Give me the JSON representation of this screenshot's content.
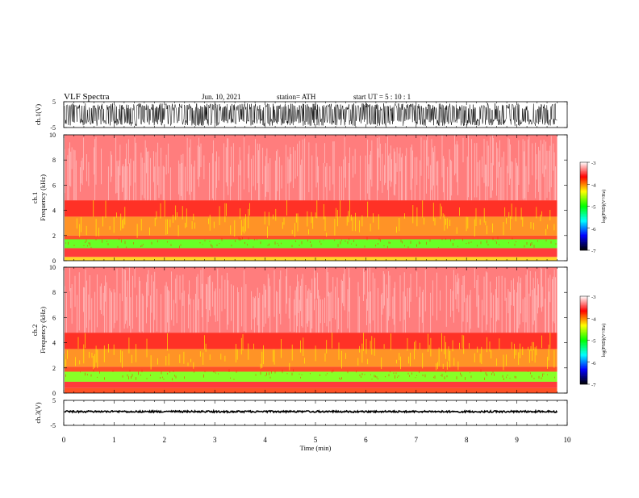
{
  "header": {
    "title": "VLF  Spectra",
    "date": "Jun. 10, 2021",
    "station": "station= ATH",
    "start": "start  UT  =    5  : 10 : 1"
  },
  "chart_data": [
    {
      "type": "line",
      "panel": "ch1-waveform",
      "ylabel": "ch.1(V)",
      "yticks": [
        "5",
        "-5"
      ],
      "ylim": [
        -5,
        5
      ],
      "xlim": [
        0,
        10
      ],
      "amplitude_note": "noise roughly between -3 and 3 V, recorded 0 to 9.8 min",
      "color": "#000000"
    },
    {
      "type": "heatmap",
      "panel": "ch1-spectrogram",
      "ylabel_line1": "ch.1",
      "ylabel_line2": "Frequency  (kHz)",
      "yticks": [
        "10",
        "8",
        "6",
        "4",
        "2",
        "0"
      ],
      "ylim": [
        0,
        10
      ],
      "xlim": [
        0,
        9.8
      ],
      "bands_khz": [
        {
          "from": 0.0,
          "to": 0.3,
          "level": -4.2
        },
        {
          "from": 0.3,
          "to": 1.0,
          "level": -3.6
        },
        {
          "from": 1.0,
          "to": 1.7,
          "level": -4.8
        },
        {
          "from": 1.7,
          "to": 2.0,
          "level": -3.8
        },
        {
          "from": 2.0,
          "to": 3.5,
          "level": -4.0
        },
        {
          "from": 3.5,
          "to": 4.8,
          "level": -3.7
        },
        {
          "from": 4.8,
          "to": 10.0,
          "level": -3.4
        }
      ]
    },
    {
      "type": "heatmap",
      "panel": "ch2-spectrogram",
      "ylabel_line1": "ch.2",
      "ylabel_line2": "Frequency  (kHz)",
      "yticks": [
        "10",
        "8",
        "6",
        "4",
        "2",
        "0"
      ],
      "ylim": [
        0,
        10
      ],
      "xlim": [
        0,
        9.8
      ],
      "bands_khz": [
        {
          "from": 0.0,
          "to": 0.4,
          "level": -3.8
        },
        {
          "from": 0.4,
          "to": 0.9,
          "level": -3.6
        },
        {
          "from": 0.9,
          "to": 1.7,
          "level": -4.7
        },
        {
          "from": 1.7,
          "to": 2.1,
          "level": -3.8
        },
        {
          "from": 2.1,
          "to": 3.5,
          "level": -4.0
        },
        {
          "from": 3.5,
          "to": 4.8,
          "level": -3.7
        },
        {
          "from": 4.8,
          "to": 10.0,
          "level": -3.4
        }
      ]
    },
    {
      "type": "line",
      "panel": "ch3-waveform",
      "ylabel": "ch.3(V)",
      "yticks": [
        "5",
        "-5"
      ],
      "ylim": [
        -5,
        5
      ],
      "xlim": [
        0,
        10
      ],
      "baseline_v": 0.5,
      "color": "#000000"
    }
  ],
  "x_axis": {
    "label": "Time  (min)",
    "ticks": [
      "0",
      "1",
      "2",
      "3",
      "4",
      "5",
      "6",
      "7",
      "8",
      "9",
      "10"
    ]
  },
  "colorbar": {
    "label": "log(PSD)(V²/Hz)",
    "ticks": [
      "-3",
      "-4",
      "-5",
      "-6",
      "-7"
    ],
    "range": [
      -7,
      -3
    ],
    "stops": [
      "#000000",
      "#0000ff",
      "#00ffff",
      "#00ff00",
      "#ffff00",
      "#ff0000",
      "#ffffff"
    ]
  }
}
